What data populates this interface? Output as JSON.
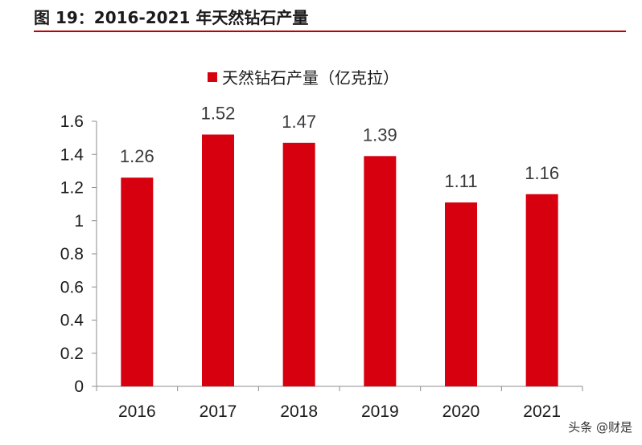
{
  "figure_title": "图 19：2016-2021 年天然钻石产量",
  "watermark": "头条 @财是",
  "chart_data": {
    "type": "bar",
    "categories": [
      "2016",
      "2017",
      "2018",
      "2019",
      "2020",
      "2021"
    ],
    "series": [
      {
        "name": "天然钻石产量（亿克拉）",
        "values": [
          1.26,
          1.52,
          1.47,
          1.39,
          1.11,
          1.16
        ],
        "color": "#d7000f"
      }
    ],
    "data_labels": [
      "1.26",
      "1.52",
      "1.47",
      "1.39",
      "1.11",
      "1.16"
    ],
    "ylim": [
      0,
      1.6
    ],
    "y_ticks": [
      "0",
      "0.2",
      "0.4",
      "0.6",
      "0.8",
      "1",
      "1.2",
      "1.4",
      "1.6"
    ],
    "grid": false,
    "legend_position": "top"
  }
}
